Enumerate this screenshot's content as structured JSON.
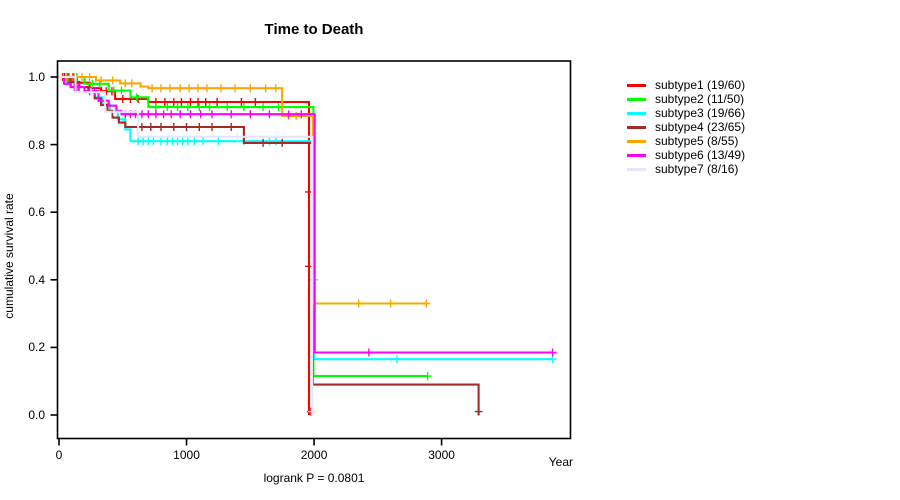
{
  "header": {
    "title": "Time to Death"
  },
  "chart_data": {
    "type": "line",
    "variant": "kaplan-meier-step",
    "title": "Time to Death",
    "xlabel": "Year",
    "ylabel": "cumulative survival rate",
    "annotation": "logrank P = 0.0801",
    "xlim": [
      0,
      4010
    ],
    "ylim": [
      0.0,
      1.0
    ],
    "x_ticks": [
      0,
      1000,
      2000,
      3000
    ],
    "x_tick_labels": [
      "0",
      "1000",
      "2000",
      "3000"
    ],
    "y_ticks": [
      0.0,
      0.2,
      0.4,
      0.6,
      0.8,
      1.0
    ],
    "y_tick_labels": [
      "0.0",
      "0.2",
      "0.4",
      "0.6",
      "0.8",
      "1.0"
    ],
    "grid": false,
    "legend_position": "right-outside",
    "series": [
      {
        "name": "subtype1",
        "label": "subtype1 (19/60)",
        "color": "#FF0000",
        "points": [
          [
            0,
            1.0
          ],
          [
            140,
            0.983
          ],
          [
            240,
            0.967
          ],
          [
            330,
            0.958
          ],
          [
            440,
            0.935
          ],
          [
            700,
            0.926
          ],
          [
            1960,
            0.926
          ],
          [
            1960,
            0.0
          ]
        ],
        "censors": [
          [
            30,
            1.0
          ],
          [
            70,
            1.0
          ],
          [
            110,
            1.0
          ],
          [
            370,
            0.958
          ],
          [
            415,
            0.958
          ],
          [
            500,
            0.935
          ],
          [
            560,
            0.935
          ],
          [
            620,
            0.935
          ],
          [
            760,
            0.926
          ],
          [
            830,
            0.926
          ],
          [
            900,
            0.926
          ],
          [
            960,
            0.926
          ],
          [
            1030,
            0.926
          ],
          [
            1090,
            0.926
          ],
          [
            1150,
            0.926
          ],
          [
            1240,
            0.926
          ],
          [
            1430,
            0.926
          ],
          [
            1540,
            0.926
          ],
          [
            1960,
            0.66
          ],
          [
            1960,
            0.44
          ],
          [
            1975,
            0.01
          ]
        ]
      },
      {
        "name": "subtype2",
        "label": "subtype2 (11/50)",
        "color": "#00FF00",
        "points": [
          [
            0,
            1.0
          ],
          [
            200,
            0.98
          ],
          [
            390,
            0.96
          ],
          [
            560,
            0.94
          ],
          [
            700,
            0.911
          ],
          [
            1995,
            0.911
          ],
          [
            1995,
            0.115
          ],
          [
            2890,
            0.115
          ]
        ],
        "censors": [
          [
            80,
            1.0
          ],
          [
            140,
            1.0
          ],
          [
            260,
            0.98
          ],
          [
            320,
            0.98
          ],
          [
            430,
            0.96
          ],
          [
            490,
            0.96
          ],
          [
            610,
            0.94
          ],
          [
            760,
            0.911
          ],
          [
            850,
            0.911
          ],
          [
            930,
            0.911
          ],
          [
            1010,
            0.911
          ],
          [
            1100,
            0.911
          ],
          [
            1180,
            0.911
          ],
          [
            1320,
            0.911
          ],
          [
            1450,
            0.911
          ],
          [
            1600,
            0.911
          ],
          [
            1720,
            0.911
          ],
          [
            2890,
            0.115
          ]
        ]
      },
      {
        "name": "subtype3",
        "label": "subtype3 (19/66)",
        "color": "#00FFFF",
        "points": [
          [
            0,
            1.0
          ],
          [
            60,
            0.985
          ],
          [
            120,
            0.97
          ],
          [
            200,
            0.955
          ],
          [
            280,
            0.94
          ],
          [
            340,
            0.92
          ],
          [
            400,
            0.9
          ],
          [
            460,
            0.875
          ],
          [
            520,
            0.845
          ],
          [
            560,
            0.81
          ],
          [
            2000,
            0.81
          ],
          [
            2000,
            0.165
          ],
          [
            3870,
            0.165
          ]
        ],
        "censors": [
          [
            90,
            0.985
          ],
          [
            160,
            0.97
          ],
          [
            620,
            0.81
          ],
          [
            660,
            0.81
          ],
          [
            700,
            0.81
          ],
          [
            740,
            0.81
          ],
          [
            800,
            0.81
          ],
          [
            850,
            0.81
          ],
          [
            890,
            0.81
          ],
          [
            930,
            0.81
          ],
          [
            970,
            0.81
          ],
          [
            1010,
            0.81
          ],
          [
            1060,
            0.81
          ],
          [
            1130,
            0.81
          ],
          [
            1250,
            0.81
          ],
          [
            1450,
            0.81
          ],
          [
            1650,
            0.81
          ],
          [
            1700,
            0.81
          ],
          [
            2000,
            0.4
          ],
          [
            2650,
            0.165
          ],
          [
            3870,
            0.165
          ]
        ]
      },
      {
        "name": "subtype4",
        "label": "subtype4 (23/65)",
        "color": "#A52A2A",
        "points": [
          [
            0,
            1.0
          ],
          [
            90,
            0.985
          ],
          [
            160,
            0.97
          ],
          [
            230,
            0.955
          ],
          [
            280,
            0.937
          ],
          [
            330,
            0.917
          ],
          [
            380,
            0.9
          ],
          [
            420,
            0.88
          ],
          [
            470,
            0.865
          ],
          [
            520,
            0.852
          ],
          [
            1450,
            0.852
          ],
          [
            1450,
            0.805
          ],
          [
            1990,
            0.805
          ],
          [
            1990,
            0.09
          ],
          [
            3290,
            0.09
          ],
          [
            3290,
            0.0
          ]
        ],
        "censors": [
          [
            45,
            1.0
          ],
          [
            95,
            0.985
          ],
          [
            140,
            0.97
          ],
          [
            650,
            0.852
          ],
          [
            720,
            0.852
          ],
          [
            800,
            0.852
          ],
          [
            900,
            0.852
          ],
          [
            1000,
            0.852
          ],
          [
            1100,
            0.852
          ],
          [
            1200,
            0.852
          ],
          [
            1350,
            0.852
          ],
          [
            1600,
            0.805
          ],
          [
            1750,
            0.805
          ],
          [
            3290,
            0.01
          ]
        ]
      },
      {
        "name": "subtype5",
        "label": "subtype5 (8/55)",
        "color": "#FFA500",
        "points": [
          [
            0,
            1.0
          ],
          [
            290,
            0.99
          ],
          [
            480,
            0.981
          ],
          [
            640,
            0.972
          ],
          [
            700,
            0.967
          ],
          [
            1750,
            0.967
          ],
          [
            1750,
            0.885
          ],
          [
            1990,
            0.885
          ],
          [
            1990,
            0.33
          ],
          [
            2880,
            0.33
          ]
        ],
        "censors": [
          [
            60,
            1.0
          ],
          [
            120,
            1.0
          ],
          [
            180,
            1.0
          ],
          [
            240,
            1.0
          ],
          [
            330,
            0.99
          ],
          [
            420,
            0.99
          ],
          [
            520,
            0.981
          ],
          [
            570,
            0.981
          ],
          [
            730,
            0.967
          ],
          [
            800,
            0.967
          ],
          [
            870,
            0.967
          ],
          [
            950,
            0.967
          ],
          [
            1020,
            0.967
          ],
          [
            1090,
            0.967
          ],
          [
            1160,
            0.967
          ],
          [
            1270,
            0.967
          ],
          [
            1380,
            0.967
          ],
          [
            1500,
            0.967
          ],
          [
            1620,
            0.967
          ],
          [
            1700,
            0.967
          ],
          [
            1800,
            0.885
          ],
          [
            1860,
            0.885
          ],
          [
            2350,
            0.33
          ],
          [
            2600,
            0.33
          ],
          [
            2880,
            0.33
          ]
        ]
      },
      {
        "name": "subtype6",
        "label": "subtype6 (13/49)",
        "color": "#FF00FF",
        "points": [
          [
            0,
            1.0
          ],
          [
            40,
            0.98
          ],
          [
            90,
            0.97
          ],
          [
            200,
            0.958
          ],
          [
            310,
            0.93
          ],
          [
            390,
            0.915
          ],
          [
            450,
            0.9
          ],
          [
            490,
            0.89
          ],
          [
            2005,
            0.89
          ],
          [
            2005,
            0.185
          ],
          [
            3870,
            0.185
          ]
        ],
        "censors": [
          [
            120,
            0.97
          ],
          [
            155,
            0.97
          ],
          [
            240,
            0.958
          ],
          [
            280,
            0.958
          ],
          [
            520,
            0.89
          ],
          [
            560,
            0.89
          ],
          [
            600,
            0.89
          ],
          [
            650,
            0.89
          ],
          [
            700,
            0.89
          ],
          [
            760,
            0.89
          ],
          [
            820,
            0.89
          ],
          [
            880,
            0.89
          ],
          [
            950,
            0.89
          ],
          [
            1030,
            0.89
          ],
          [
            1110,
            0.89
          ],
          [
            1200,
            0.89
          ],
          [
            1350,
            0.89
          ],
          [
            1500,
            0.89
          ],
          [
            1650,
            0.89
          ],
          [
            1800,
            0.89
          ],
          [
            1900,
            0.89
          ],
          [
            2430,
            0.185
          ],
          [
            3870,
            0.185
          ]
        ]
      },
      {
        "name": "subtype7",
        "label": "subtype7 (8/16)",
        "color": "#E6E6FA",
        "points": [
          [
            0,
            1.0
          ],
          [
            130,
            0.955
          ],
          [
            360,
            0.897
          ],
          [
            620,
            0.823
          ],
          [
            1985,
            0.823
          ],
          [
            1985,
            0.0
          ]
        ],
        "censors": [
          [
            250,
            0.955
          ],
          [
            430,
            0.897
          ],
          [
            1400,
            0.823
          ],
          [
            1985,
            0.01
          ]
        ]
      }
    ]
  },
  "colors": {
    "background": "#FFFFFF",
    "axis": "#000000",
    "text": "#000000"
  }
}
